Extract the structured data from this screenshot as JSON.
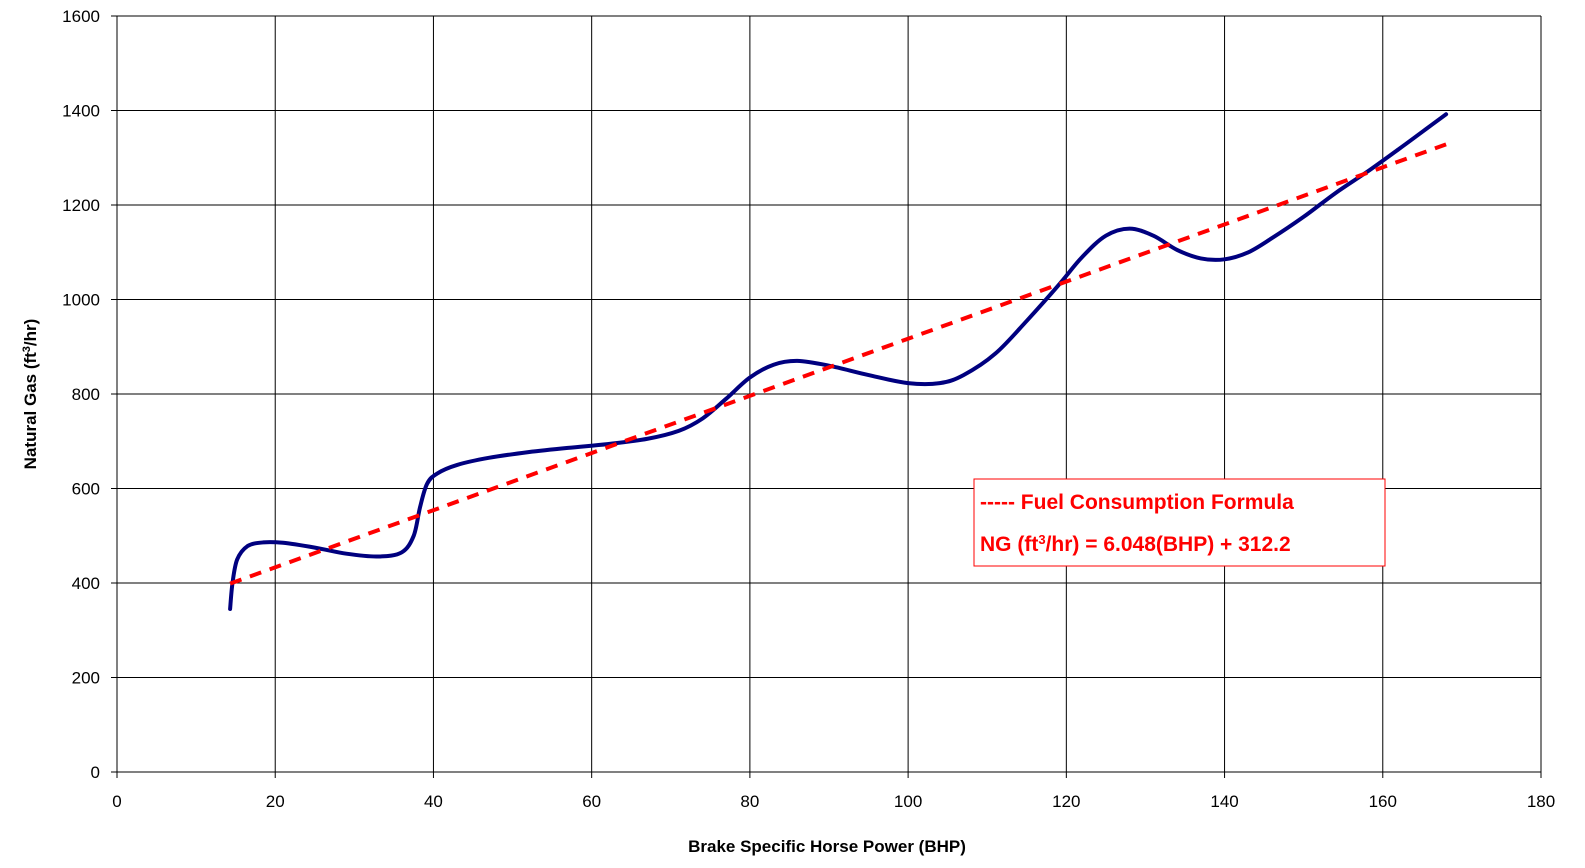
{
  "chart_data": {
    "type": "line",
    "xlabel": "Brake Specific Horse Power (BHP)",
    "ylabel": {
      "prefix": "Natural Gas (ft",
      "sup": "3",
      "suffix": "/hr)"
    },
    "xlim": [
      0,
      180
    ],
    "ylim": [
      0,
      1600
    ],
    "x_ticks": [
      0,
      20,
      40,
      60,
      80,
      100,
      120,
      140,
      160,
      180
    ],
    "y_ticks": [
      0,
      200,
      400,
      600,
      800,
      1000,
      1200,
      1400,
      1600
    ],
    "grid": true,
    "series": [
      {
        "style": "solid",
        "color": "#00007F",
        "points": [
          [
            14.3,
            345
          ],
          [
            14.6,
            400
          ],
          [
            15.2,
            450
          ],
          [
            16.5,
            478
          ],
          [
            18.5,
            486
          ],
          [
            21,
            485
          ],
          [
            25,
            475
          ],
          [
            29,
            462
          ],
          [
            33,
            456
          ],
          [
            36,
            465
          ],
          [
            37.5,
            500
          ],
          [
            38.3,
            560
          ],
          [
            39.2,
            610
          ],
          [
            40.5,
            632
          ],
          [
            43,
            650
          ],
          [
            47,
            665
          ],
          [
            52,
            677
          ],
          [
            57,
            686
          ],
          [
            62,
            694
          ],
          [
            67,
            705
          ],
          [
            71,
            722
          ],
          [
            74,
            748
          ],
          [
            77,
            790
          ],
          [
            80,
            835
          ],
          [
            83,
            862
          ],
          [
            86,
            870
          ],
          [
            90,
            860
          ],
          [
            95,
            840
          ],
          [
            100,
            823
          ],
          [
            104,
            823
          ],
          [
            107,
            840
          ],
          [
            111,
            885
          ],
          [
            115,
            955
          ],
          [
            119,
            1030
          ],
          [
            122,
            1090
          ],
          [
            125,
            1135
          ],
          [
            128,
            1150
          ],
          [
            131,
            1135
          ],
          [
            134,
            1105
          ],
          [
            137,
            1087
          ],
          [
            140,
            1085
          ],
          [
            143,
            1100
          ],
          [
            146,
            1130
          ],
          [
            150,
            1175
          ],
          [
            154,
            1225
          ],
          [
            158,
            1270
          ],
          [
            162,
            1318
          ],
          [
            165,
            1355
          ],
          [
            168,
            1392
          ]
        ]
      },
      {
        "style": "dashed",
        "color": "#FF0000",
        "x_start": 14.3,
        "x_end": 168,
        "slope": 6.048,
        "intercept": 312.2
      }
    ],
    "legend": {
      "placement": "right-middle",
      "border_color": "#FF0000",
      "text_color": "#FF0000",
      "line1": "----- Fuel Consumption Formula",
      "line2_prefix": "NG (ft",
      "line2_sup": "3",
      "line2_suffix": "/hr) = 6.048(BHP) + 312.2"
    }
  }
}
